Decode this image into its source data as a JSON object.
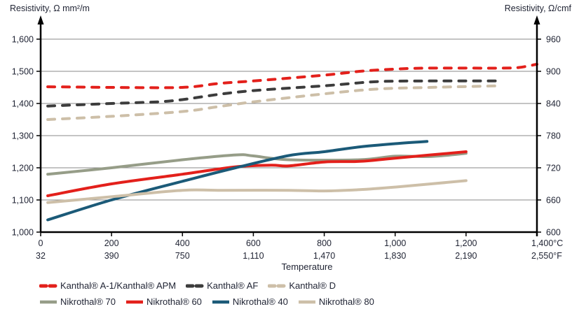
{
  "chart_data": {
    "type": "line",
    "title": "",
    "ylabel_left": "Resistivity, Ω mm²/m",
    "ylabel_right": "Resistivity, Ω/cmf",
    "xlabel": "Temperature",
    "xlim": [
      0,
      1400
    ],
    "ylim": [
      1000,
      1600
    ],
    "ylim_right": [
      600,
      960
    ],
    "grid": true,
    "x_ticks_c": [
      "0",
      "200",
      "400",
      "600",
      "800",
      "1,000",
      "1,200",
      "1,400°C"
    ],
    "x_ticks_f": [
      "32",
      "390",
      "750",
      "1,110",
      "1,470",
      "1,830",
      "2,190",
      "2,550°F"
    ],
    "x_tick_values": [
      0,
      200,
      400,
      600,
      800,
      1000,
      1200,
      1400
    ],
    "y_ticks_left": [
      "1,000",
      "1,100",
      "1,200",
      "1,300",
      "1,400",
      "1,500",
      "1,600"
    ],
    "y_tick_values_left": [
      1000,
      1100,
      1200,
      1300,
      1400,
      1500,
      1600
    ],
    "y_ticks_right": [
      "600",
      "660",
      "720",
      "780",
      "840",
      "900",
      "960"
    ],
    "legend_placement": "bottom",
    "series": [
      {
        "name": "Kanthal® A-1/Kanthal® APM",
        "style": "dashed",
        "color": "#e3201b",
        "x": [
          20,
          200,
          400,
          500,
          600,
          800,
          900,
          1000,
          1100,
          1300,
          1350,
          1400
        ],
        "y": [
          1452,
          1450,
          1450,
          1462,
          1470,
          1488,
          1500,
          1507,
          1510,
          1510,
          1512,
          1522
        ]
      },
      {
        "name": "Kanthal® AF",
        "style": "dashed",
        "color": "#3c3c3c",
        "x": [
          20,
          200,
          330,
          400,
          500,
          600,
          800,
          950,
          1100,
          1300
        ],
        "y": [
          1392,
          1400,
          1405,
          1412,
          1428,
          1440,
          1455,
          1468,
          1470,
          1470
        ]
      },
      {
        "name": "Kanthal® D",
        "style": "dashed",
        "color": "#cdbfa8",
        "x": [
          20,
          200,
          400,
          500,
          600,
          800,
          950,
          1100,
          1300
        ],
        "y": [
          1350,
          1360,
          1375,
          1390,
          1405,
          1430,
          1445,
          1450,
          1455
        ]
      },
      {
        "name": "Nikrothal® 70",
        "style": "solid",
        "color": "#969d88",
        "x": [
          20,
          200,
          400,
          550,
          600,
          700,
          900,
          1000,
          1100,
          1200
        ],
        "y": [
          1180,
          1200,
          1225,
          1240,
          1237,
          1225,
          1225,
          1236,
          1235,
          1245
        ]
      },
      {
        "name": "Nikrothal® 60",
        "style": "solid",
        "color": "#e3201b",
        "x": [
          20,
          200,
          400,
          550,
          650,
          700,
          800,
          900,
          1000,
          1200
        ],
        "y": [
          1113,
          1150,
          1180,
          1203,
          1208,
          1206,
          1218,
          1220,
          1230,
          1250
        ]
      },
      {
        "name": "Nikrothal® 40",
        "style": "solid",
        "color": "#1b5a78",
        "x": [
          20,
          200,
          400,
          550,
          700,
          800,
          900,
          1000,
          1090
        ],
        "y": [
          1038,
          1100,
          1158,
          1200,
          1238,
          1250,
          1265,
          1275,
          1282
        ]
      },
      {
        "name": "Nikrothal® 80",
        "style": "solid",
        "color": "#cdbfa8",
        "x": [
          20,
          200,
          400,
          500,
          700,
          800,
          900,
          1000,
          1200
        ],
        "y": [
          1092,
          1110,
          1130,
          1130,
          1130,
          1128,
          1132,
          1140,
          1160
        ]
      }
    ]
  },
  "legend": {
    "row1": [
      {
        "label": "Kanthal® A-1/Kanthal® APM",
        "color": "#e3201b",
        "style": "dashed"
      },
      {
        "label": "Kanthal® AF",
        "color": "#3c3c3c",
        "style": "dashed"
      },
      {
        "label": "Kanthal® D",
        "color": "#cdbfa8",
        "style": "dashed"
      }
    ],
    "row2": [
      {
        "label": "Nikrothal® 70",
        "color": "#969d88",
        "style": "solid"
      },
      {
        "label": "Nikrothal® 60",
        "color": "#e3201b",
        "style": "solid"
      },
      {
        "label": "Nikrothal® 40",
        "color": "#1b5a78",
        "style": "solid"
      },
      {
        "label": "Nikrothal® 80",
        "color": "#cdbfa8",
        "style": "solid"
      }
    ]
  }
}
